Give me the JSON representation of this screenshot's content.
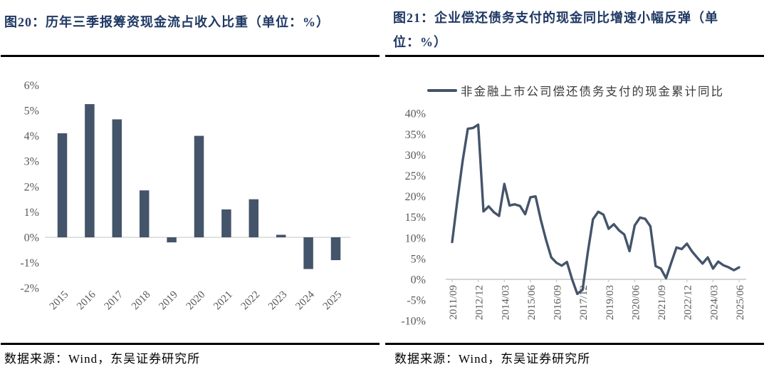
{
  "page": {
    "background": "#ffffff"
  },
  "colors": {
    "title": "#1F3864",
    "data_mark": "#44546A",
    "axis_line": "#D9D9D9",
    "axis_text": "#595959",
    "rule": "#000000"
  },
  "figures": [
    {
      "id": "fig20",
      "title": "图20：历年三季报筹资现金流占收入比重（单位：%）",
      "source": "数据来源：Wind，东吴证券研究所",
      "chart_data": {
        "type": "bar",
        "categories": [
          "2015",
          "2016",
          "2017",
          "2018",
          "2019",
          "2020",
          "2021",
          "2022",
          "2023",
          "2024",
          "2025"
        ],
        "values": [
          4.1,
          5.25,
          4.65,
          1.85,
          -0.2,
          4.0,
          1.1,
          1.5,
          0.1,
          -1.25,
          -0.9
        ],
        "title": "",
        "xlabel": "",
        "ylabel": "",
        "ylim": [
          -2,
          6
        ],
        "ytick_step": 1,
        "ytick_labels": [
          "6%",
          "5%",
          "4%",
          "3%",
          "2%",
          "1%",
          "0%",
          "-1%",
          "-2%"
        ],
        "grid": false,
        "bar_color": "#44546A",
        "axis_color": "#D9D9D9",
        "label_color": "#595959",
        "xlabel_rotation": -45
      }
    },
    {
      "id": "fig21",
      "title": "图21：企业偿还债务支付的现金同比增速小幅反弹（单位：%）",
      "legend": "非金融上市公司偿还债务支付的现金累计同比",
      "source": "数据来源：Wind，东吴证券研究所",
      "chart_data": {
        "type": "line",
        "x": [
          "2011/09",
          "2011/12",
          "2012/03",
          "2012/06",
          "2012/09",
          "2012/12",
          "2013/03",
          "2013/06",
          "2013/09",
          "2013/12",
          "2014/03",
          "2014/06",
          "2014/09",
          "2014/12",
          "2015/03",
          "2015/06",
          "2015/09",
          "2015/12",
          "2016/03",
          "2016/06",
          "2016/09",
          "2016/12",
          "2017/03",
          "2017/06",
          "2017/09",
          "2017/12",
          "2018/03",
          "2018/06",
          "2018/09",
          "2018/12",
          "2019/03",
          "2019/06",
          "2019/09",
          "2019/12",
          "2020/03",
          "2020/06",
          "2020/09",
          "2020/12",
          "2021/03",
          "2021/06",
          "2021/09",
          "2021/12",
          "2022/03",
          "2022/06",
          "2022/09",
          "2022/12",
          "2023/03",
          "2023/06",
          "2023/09",
          "2023/12",
          "2024/03",
          "2024/06",
          "2024/09",
          "2024/12",
          "2025/03",
          "2025/06"
        ],
        "values": [
          9.0,
          19.0,
          28.5,
          36.3,
          36.5,
          37.3,
          16.4,
          17.6,
          16.2,
          15.3,
          23.0,
          17.8,
          18.1,
          17.7,
          15.7,
          19.8,
          20.0,
          14.3,
          9.5,
          5.3,
          4.0,
          3.3,
          4.2,
          0.0,
          -3.5,
          -2.5,
          6.5,
          14.5,
          16.3,
          15.6,
          12.2,
          13.3,
          11.8,
          10.8,
          6.8,
          13.0,
          14.9,
          14.6,
          12.8,
          3.2,
          2.6,
          0.3,
          4.0,
          7.7,
          7.3,
          8.6,
          6.7,
          5.2,
          3.8,
          5.3,
          2.6,
          4.3,
          3.4,
          2.9,
          2.2,
          2.9
        ],
        "xtick_labels": [
          "2011/09",
          "2012/12",
          "2014/03",
          "2015/06",
          "2016/09",
          "2017/12",
          "2019/03",
          "2020/06",
          "2021/09",
          "2022/12",
          "2024/03",
          "2025/06"
        ],
        "xtick_every": 5,
        "title": "",
        "xlabel": "",
        "ylabel": "",
        "ylim": [
          -10,
          40
        ],
        "ytick_step": 5,
        "ytick_labels": [
          "40%",
          "35%",
          "30%",
          "25%",
          "20%",
          "15%",
          "10%",
          "5%",
          "0%",
          "-5%",
          "-10%"
        ],
        "grid": false,
        "legend_position": "top",
        "line_color": "#44546A",
        "axis_color": "#C6C6C6",
        "label_color": "#595959",
        "xlabel_rotation": -90
      }
    }
  ]
}
